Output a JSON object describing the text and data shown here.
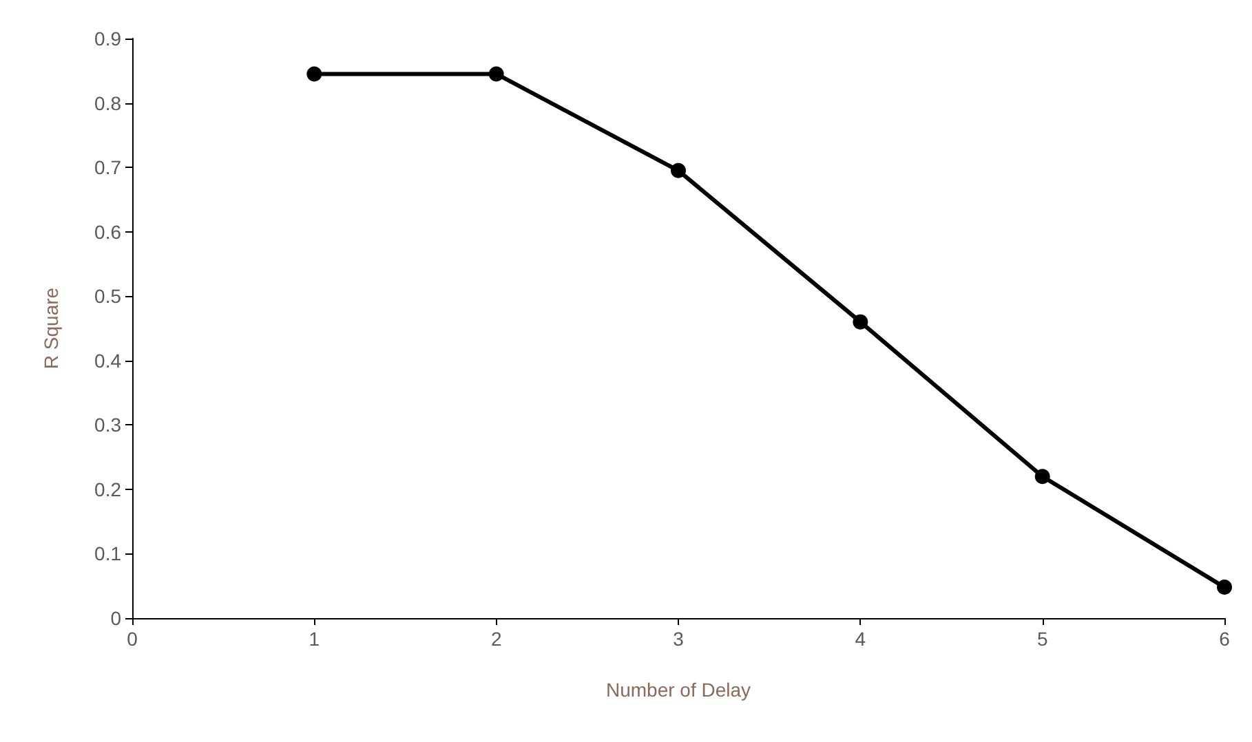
{
  "chart_data": {
    "type": "line",
    "xlabel": "Number of Delay",
    "ylabel": "R Square",
    "x": [
      1,
      2,
      3,
      4,
      5,
      6
    ],
    "series": [
      {
        "color": "#000000",
        "values": [
          0.845,
          0.845,
          0.695,
          0.46,
          0.22,
          0.048
        ]
      }
    ],
    "xlim": [
      0,
      6
    ],
    "xticks": [
      0,
      1,
      2,
      3,
      4,
      5,
      6
    ],
    "ylim": [
      0,
      0.9
    ],
    "yticks": [
      0,
      0.1,
      0.2,
      0.3,
      0.4,
      0.5,
      0.6,
      0.7,
      0.8,
      0.9
    ],
    "grid": false,
    "marker": "circle",
    "line_style": "solid"
  }
}
